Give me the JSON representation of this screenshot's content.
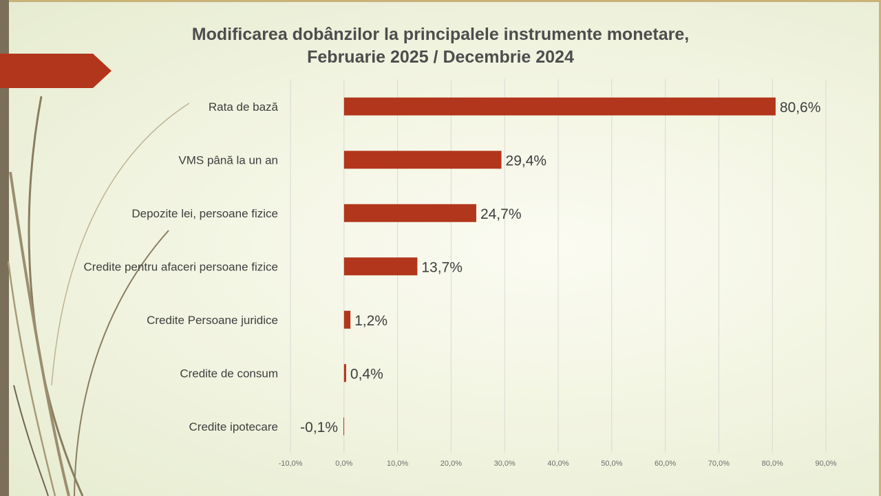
{
  "slide": {
    "title_line1": "Modificarea dobânzilor la principalele instrumente monetare,",
    "title_line2": "Februarie 2025 / Decembrie 2024",
    "accent_color": "#b2361b",
    "decor_color": "#7a6f58"
  },
  "chart_data": {
    "type": "bar",
    "orientation": "horizontal",
    "categories": [
      "Rata de bază",
      "VMS până la un an",
      "Depozite lei, persoane fizice",
      "Credite pentru afaceri persoane fizice",
      "Credite Persoane juridice",
      "Credite de consum",
      "Credite ipotecare"
    ],
    "values": [
      80.6,
      29.4,
      24.7,
      13.7,
      1.2,
      0.4,
      -0.1
    ],
    "value_labels": [
      "80,6%",
      "29,4%",
      "24,7%",
      "13,7%",
      "1,2%",
      "0,4%",
      "-0,1%"
    ],
    "xlim": [
      -10,
      90
    ],
    "ticks": [
      -10,
      0,
      10,
      20,
      30,
      40,
      50,
      60,
      70,
      80,
      90
    ],
    "tick_labels": [
      "-10,0%",
      "0,0%",
      "10,0%",
      "20,0%",
      "30,0%",
      "40,0%",
      "50,0%",
      "60,0%",
      "70,0%",
      "80,0%",
      "90,0%"
    ],
    "grid": true,
    "bar_color": "#b2361b",
    "grid_color": "#d9d9d4"
  }
}
